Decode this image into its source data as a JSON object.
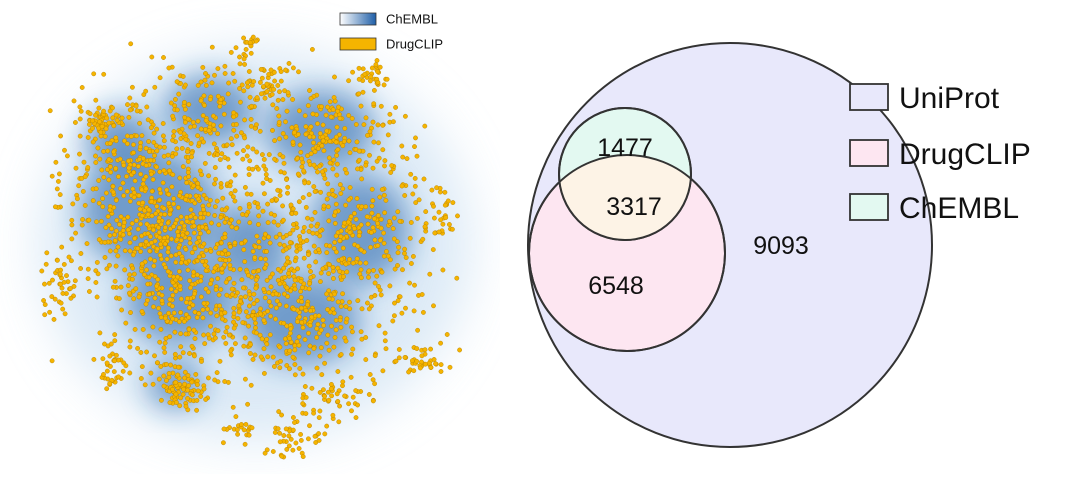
{
  "chart_data": [
    {
      "type": "scatter",
      "title": "",
      "xlabel": "",
      "ylabel": "",
      "legend_position": "top-right",
      "grid": false,
      "series": [
        {
          "name": "ChEMBL",
          "kind": "density",
          "color": "#1f5fa8"
        },
        {
          "name": "DrugCLIP",
          "kind": "points",
          "color": "#f5b400"
        }
      ]
    },
    {
      "type": "venn",
      "title": "",
      "legend_position": "right",
      "sets": [
        {
          "name": "UniProt",
          "color": "#e8e8fb"
        },
        {
          "name": "DrugCLIP",
          "color": "#fde6f1"
        },
        {
          "name": "ChEMBL",
          "color": "#e3f9f1"
        }
      ],
      "regions": {
        "chembl_only": "1477",
        "chembl_and_drugclip": "3317",
        "drugclip_only": "6548",
        "uniprot_only": "9093"
      }
    }
  ]
}
